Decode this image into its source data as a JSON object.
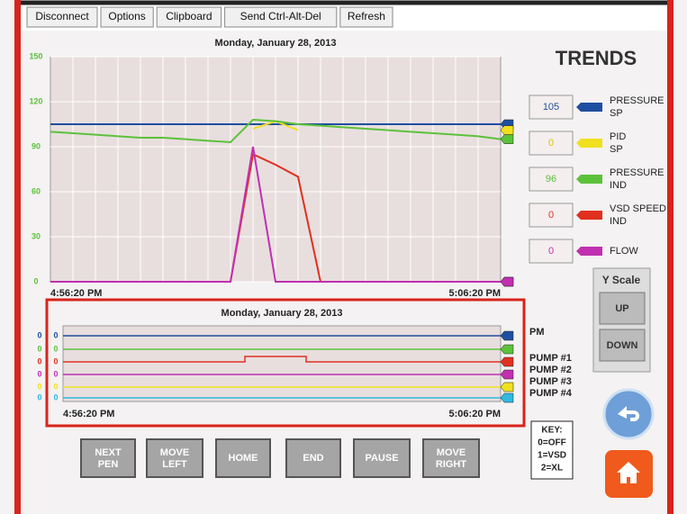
{
  "toolbar": [
    "Disconnect",
    "Options",
    "Clipboard",
    "Send Ctrl-Alt-Del",
    "Refresh"
  ],
  "screen_title": "TRENDS",
  "chart_data": {
    "type": "line",
    "title": "Monday, January 28, 2013",
    "categories": [
      "4:56:20 PM",
      null,
      null,
      null,
      null,
      null,
      null,
      null,
      null,
      null,
      null,
      null,
      null,
      null,
      null,
      null,
      null,
      null,
      null,
      null,
      "5:06:20 PM"
    ],
    "ylim": [
      0,
      150
    ],
    "yticks": [
      0,
      30,
      60,
      90,
      120,
      150
    ],
    "grid": true,
    "series": [
      {
        "name": "PRESSURE SP",
        "color": "#1f4fa0",
        "readout": 105,
        "values": [
          105,
          105,
          105,
          105,
          105,
          105,
          105,
          105,
          105,
          105,
          105,
          105,
          105,
          105,
          105,
          105,
          105,
          105,
          105,
          105,
          105
        ]
      },
      {
        "name": "PID SP",
        "color": "#f0e020",
        "readout": 0,
        "values": [
          null,
          null,
          null,
          null,
          null,
          null,
          null,
          null,
          null,
          102,
          107,
          101,
          null,
          null,
          null,
          null,
          null,
          null,
          null,
          null,
          null
        ]
      },
      {
        "name": "PRESSURE IND",
        "color": "#5cc23a",
        "readout": 96,
        "values": [
          100,
          99,
          98,
          97,
          96,
          96,
          95,
          94,
          93,
          108,
          107,
          105,
          104,
          103,
          102,
          101,
          100,
          99,
          98,
          97,
          95
        ]
      },
      {
        "name": "VSD SPEED IND",
        "color": "#e03020",
        "readout": 0,
        "values": [
          0,
          0,
          0,
          0,
          0,
          0,
          0,
          0,
          0,
          85,
          78,
          70,
          0,
          0,
          0,
          0,
          0,
          0,
          0,
          0,
          0
        ]
      },
      {
        "name": "FLOW",
        "color": "#c030b0",
        "readout": 0,
        "values": [
          0,
          0,
          0,
          0,
          0,
          0,
          0,
          0,
          0,
          90,
          0,
          0,
          0,
          0,
          0,
          0,
          0,
          0,
          0,
          0,
          0
        ]
      }
    ]
  },
  "status_chart": {
    "title": "Monday, January 28, 2013",
    "start": "4:56:20 PM",
    "end": "5:06:20 PM",
    "rows": [
      {
        "color": "#1f4fa0",
        "label": "PM",
        "left": [
          0,
          0
        ]
      },
      {
        "color": "#5cc23a",
        "left": [
          0,
          0
        ]
      },
      {
        "color": "#e03020",
        "label": "PUMP #1",
        "left": [
          0,
          0
        ]
      },
      {
        "color": "#c030b0",
        "label": "PUMP #2",
        "left": [
          0,
          0
        ]
      },
      {
        "color": "#f0e020",
        "label": "PUMP #3",
        "left": [
          0,
          0
        ]
      },
      {
        "color": "#30b8e0",
        "label": "PUMP #4",
        "left": [
          0,
          0
        ]
      }
    ]
  },
  "y_scale": {
    "title": "Y Scale",
    "up": "UP",
    "down": "DOWN"
  },
  "buttons": [
    "NEXT PEN",
    "MOVE LEFT",
    "HOME",
    "END",
    "PAUSE",
    "MOVE RIGHT"
  ],
  "key": [
    "KEY:",
    "0=OFF",
    "1=VSD",
    "2=XL"
  ]
}
